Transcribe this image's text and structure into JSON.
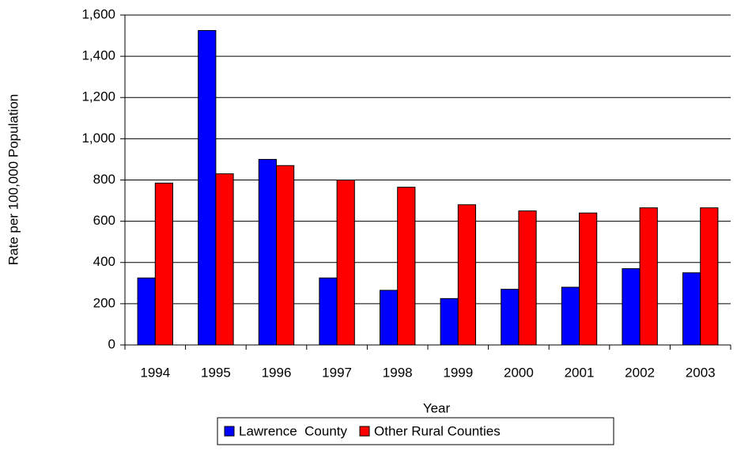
{
  "chart_data": {
    "type": "bar",
    "x_label": "Year",
    "y_label": "Rate per 100,000 Population",
    "categories": [
      "1994",
      "1995",
      "1996",
      "1997",
      "1998",
      "1999",
      "2000",
      "2001",
      "2002",
      "2003"
    ],
    "series": [
      {
        "name": "Lawrence  County",
        "color": "#0000ff",
        "values": [
          325,
          1525,
          900,
          325,
          265,
          225,
          270,
          280,
          370,
          350
        ]
      },
      {
        "name": "Other Rural Counties",
        "color": "#ff0000",
        "values": [
          785,
          830,
          870,
          800,
          765,
          680,
          650,
          640,
          665,
          665
        ]
      }
    ],
    "ylim": [
      0,
      1600
    ],
    "yticks": [
      0,
      200,
      400,
      600,
      800,
      {
        "value": 1000,
        "label": "1,000"
      },
      {
        "value": 1200,
        "label": "1,200"
      },
      {
        "value": 1400,
        "label": "1,400"
      },
      {
        "value": 1600,
        "label": "1,600"
      }
    ],
    "grid": true,
    "legend": "bottom"
  }
}
